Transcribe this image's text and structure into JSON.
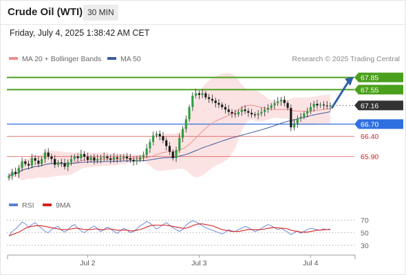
{
  "header": {
    "title": "Crude Oil (WTI)",
    "timeframe": "30 MIN",
    "datetime": "Friday, July 4, 2025 1:38:42 AM CET"
  },
  "legend": {
    "bollinger_label": "MA 20 + Bollinger Bands",
    "bollinger_color": "#f08c8c",
    "ma50_label": "MA 50",
    "ma50_color": "#3a5a9c",
    "credit": "Research © 2025 Trading Central"
  },
  "indicator_legend": {
    "rsi_label": "RSI",
    "rsi_color": "#5b7fd6",
    "ma9_label": "9MA",
    "ma9_color": "#d62020"
  },
  "chart_data": [
    {
      "type": "candlestick",
      "title": "Crude Oil (WTI) 30 MIN",
      "ylim": [
        65.15,
        68.2
      ],
      "grid": false,
      "x_ticks": [
        "Jul 2",
        "Jul 3",
        "Jul 4"
      ],
      "levels": [
        {
          "label": "67.85",
          "value": 67.85,
          "color": "#4aa01c",
          "kind": "resistance"
        },
        {
          "label": "67.55",
          "value": 67.55,
          "color": "#4aa01c",
          "kind": "resistance"
        },
        {
          "label": "67.16",
          "value": 67.16,
          "color": "#333333",
          "kind": "current"
        },
        {
          "label": "66.70",
          "value": 66.7,
          "color": "#2f6fe0",
          "kind": "pivot"
        },
        {
          "label": "66.40",
          "value": 66.4,
          "color": "#d62020",
          "kind": "support"
        },
        {
          "label": "65.90",
          "value": 65.9,
          "color": "#d62020",
          "kind": "support"
        }
      ],
      "close_series": [
        65.42,
        65.52,
        65.48,
        65.62,
        65.78,
        65.72,
        65.68,
        65.86,
        65.8,
        65.72,
        65.84,
        66.0,
        65.9,
        65.84,
        65.7,
        65.76,
        65.74,
        65.65,
        65.76,
        65.84,
        65.9,
        65.86,
        65.96,
        65.9,
        65.82,
        65.88,
        65.8,
        65.84,
        65.87,
        65.9,
        65.86,
        65.82,
        65.88,
        65.85,
        65.86,
        65.9,
        65.86,
        65.82,
        65.78,
        65.82,
        65.88,
        65.94,
        66.1,
        66.26,
        66.42,
        66.46,
        66.4,
        66.3,
        66.16,
        66.02,
        65.86,
        66.06,
        66.36,
        66.58,
        66.82,
        67.12,
        67.4,
        67.46,
        67.42,
        67.46,
        67.36,
        67.32,
        67.28,
        67.22,
        67.18,
        67.12,
        67.06,
        67.0,
        66.96,
        66.94,
        67.0,
        67.06,
        67.02,
        66.98,
        66.94,
        66.92,
        66.96,
        67.0,
        67.06,
        67.1,
        67.16,
        67.22,
        67.26,
        67.3,
        67.22,
        67.1,
        66.62,
        66.72,
        66.84,
        66.88,
        66.96,
        67.02,
        67.12,
        67.2,
        67.16,
        67.18,
        67.16,
        67.14,
        67.16
      ],
      "forecast_arrow": {
        "from": 67.16,
        "to": 67.85
      }
    },
    {
      "type": "line",
      "title": "RSI",
      "ylim": [
        20,
        80
      ],
      "y_ticks": [
        70,
        50,
        30
      ],
      "x_ticks": [
        "Jul 2",
        "Jul 3",
        "Jul 4"
      ],
      "series": [
        {
          "name": "RSI",
          "color": "#5b7fd6",
          "values": [
            45,
            52,
            56,
            61,
            67,
            64,
            59,
            63,
            66,
            61,
            57,
            52,
            50,
            55,
            58,
            60,
            54,
            51,
            55,
            60,
            63,
            57,
            53,
            50,
            54,
            58,
            61,
            56,
            52,
            55,
            59,
            56,
            52,
            49,
            53,
            57,
            54,
            50,
            52,
            56,
            61,
            64,
            68,
            65,
            61,
            56,
            59,
            63,
            66,
            62,
            58,
            55,
            52,
            55,
            62,
            66,
            69,
            67,
            64,
            61,
            58,
            56,
            54,
            52,
            50,
            48,
            51,
            55,
            53,
            52,
            55,
            57,
            60,
            58,
            55,
            52,
            54,
            57,
            60,
            63,
            61,
            58,
            55,
            57,
            54,
            51,
            47,
            50,
            53,
            49,
            52,
            55,
            57,
            56,
            55,
            54,
            56,
            55,
            56
          ]
        },
        {
          "name": "9MA",
          "color": "#d62020",
          "values": [
            45,
            47,
            49,
            51,
            54,
            57,
            59,
            60,
            61,
            61,
            61,
            60,
            59,
            58,
            57,
            56,
            55,
            55,
            55,
            56,
            57,
            57,
            56,
            55,
            55,
            55,
            56,
            56,
            55,
            55,
            56,
            56,
            55,
            54,
            54,
            54,
            54,
            53,
            53,
            54,
            55,
            57,
            59,
            61,
            62,
            62,
            62,
            62,
            62,
            61,
            60,
            59,
            58,
            57,
            57,
            59,
            61,
            63,
            64,
            64,
            63,
            62,
            61,
            59,
            57,
            55,
            54,
            53,
            52,
            52,
            52,
            53,
            54,
            55,
            55,
            55,
            55,
            55,
            56,
            57,
            58,
            58,
            58,
            57,
            57,
            56,
            54,
            53,
            52,
            51,
            51,
            51,
            52,
            53,
            54,
            54,
            55,
            55,
            55
          ]
        }
      ]
    }
  ]
}
